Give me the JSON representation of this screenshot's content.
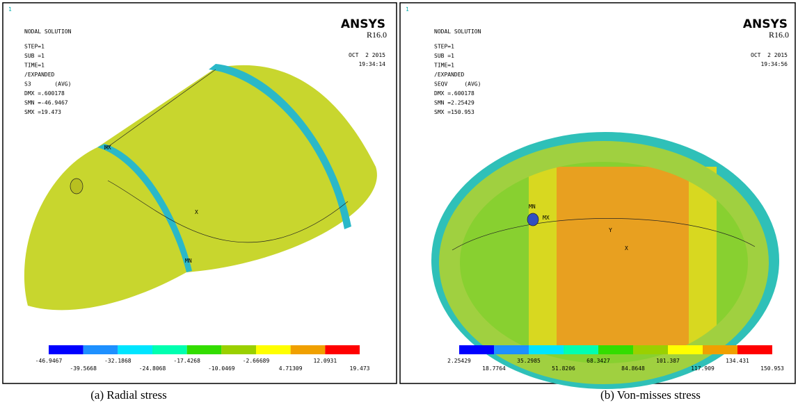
{
  "panels": [
    {
      "corner": "1",
      "header": [
        "NODAL SOLUTION",
        "STEP=1",
        "SUB =1",
        "TIME=1",
        "/EXPANDED",
        "S3       (AVG)",
        "DMX =.600178",
        "SMN =-46.9467",
        "SMX =19.473"
      ],
      "brand": "ANSYS",
      "version": "R16.0",
      "date": "OCT  2 2015",
      "time": "19:34:14",
      "markers": [
        "MX",
        "X",
        "MN"
      ],
      "legend": [
        "-46.9467",
        "-39.5668",
        "-32.1868",
        "-24.8068",
        "-17.4268",
        "-10.0469",
        "-2.66689",
        "4.71309",
        "12.0931",
        "19.473"
      ],
      "caption": "(a) Radial stress"
    },
    {
      "corner": "1",
      "header": [
        "NODAL SOLUTION",
        "STEP=1",
        "SUB =1",
        "TIME=1",
        "/EXPANDED",
        "SEQV     (AVG)",
        "DMX =.600178",
        "SMN =2.25429",
        "SMX =150.953"
      ],
      "brand": "ANSYS",
      "version": "R16.0",
      "date": "OCT  2 2015",
      "time": "19:34:56",
      "markers": [
        "MN",
        "MX",
        "Y",
        "X"
      ],
      "legend": [
        "2.25429",
        "18.7764",
        "35.2985",
        "51.8206",
        "68.3427",
        "84.8648",
        "101.387",
        "117.909",
        "134.431",
        "150.953"
      ],
      "caption": "(b) Von-misses stress"
    }
  ],
  "colorbar": [
    "#0000ff",
    "#1e90ff",
    "#00e5ff",
    "#00ffb0",
    "#33dd00",
    "#9ad000",
    "#ffff00",
    "#f0a000",
    "#ff0000"
  ]
}
